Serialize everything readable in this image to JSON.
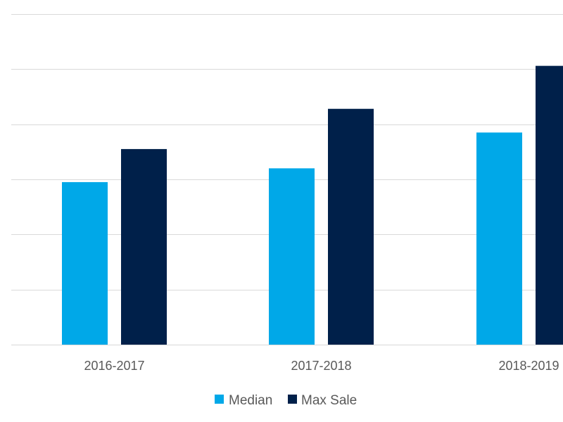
{
  "chart_data": {
    "type": "bar",
    "categories": [
      "2016-2017",
      "2017-2018",
      "2018-2019"
    ],
    "series": [
      {
        "name": "Median",
        "values": [
          2.95,
          3.2,
          3.85
        ],
        "color": "#00a8e8"
      },
      {
        "name": "Max Sale",
        "values": [
          3.55,
          4.28,
          5.06
        ],
        "color": "#00204a"
      }
    ],
    "title": "",
    "xlabel": "",
    "ylabel": "",
    "ylim": [
      0,
      6
    ],
    "grid": true,
    "legend_position": "bottom"
  }
}
